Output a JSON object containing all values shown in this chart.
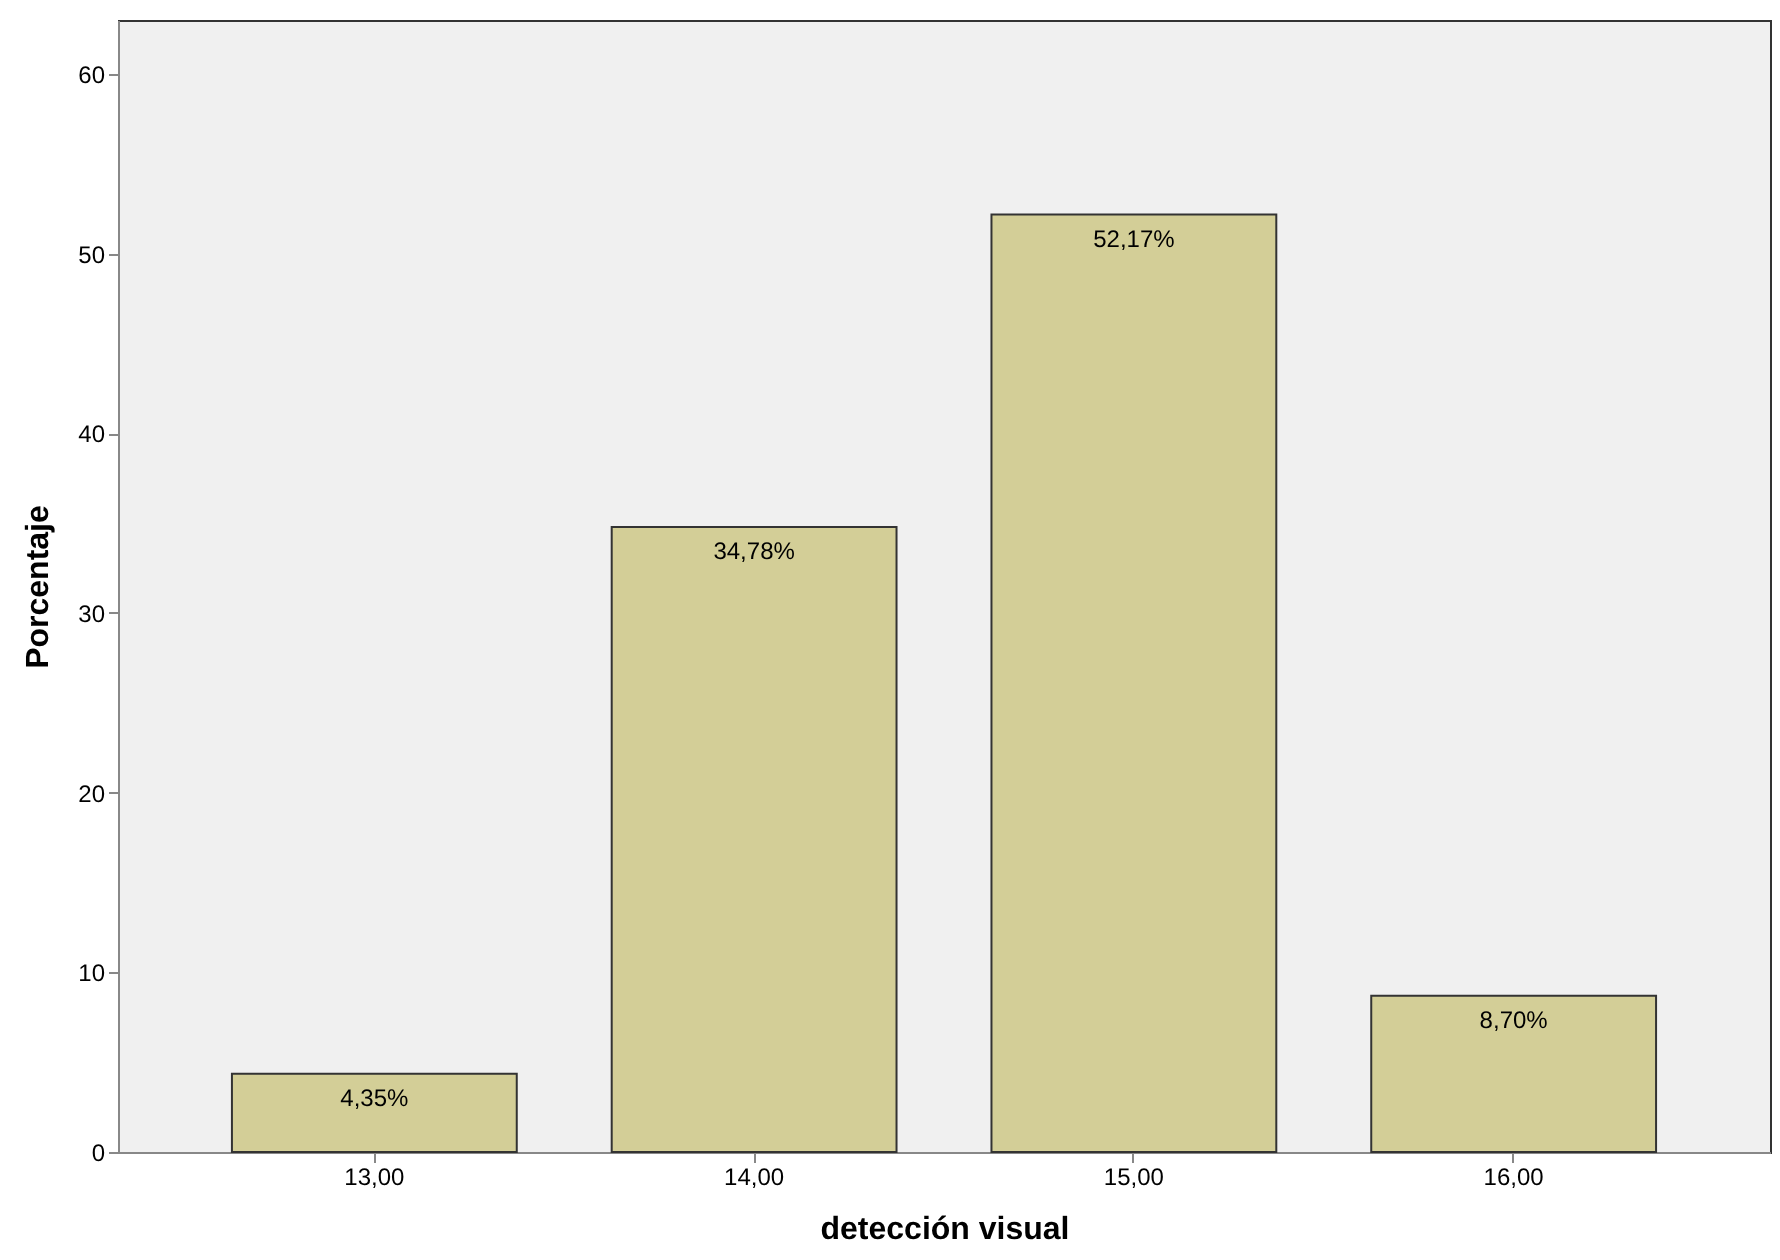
{
  "chart_data": {
    "type": "bar",
    "xlabel": "detección visual",
    "ylabel": "Porcentaje",
    "categories": [
      "13,00",
      "14,00",
      "15,00",
      "16,00"
    ],
    "values": [
      4.35,
      34.78,
      52.17,
      8.7
    ],
    "value_labels": [
      "4,35%",
      "34,78%",
      "52,17%",
      "8,70%"
    ],
    "color": "#d3ce97",
    "ylim": [
      0,
      63
    ],
    "yticks": [
      0,
      10,
      20,
      30,
      40,
      50,
      60
    ],
    "grid": false
  }
}
